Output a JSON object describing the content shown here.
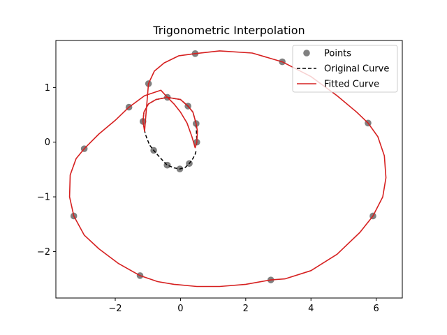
{
  "chart_data": {
    "type": "line",
    "title": "Trigonometric Interpolation",
    "xlabel": "",
    "ylabel": "",
    "xlim": [
      -3.82,
      6.8
    ],
    "ylim": [
      -2.85,
      1.86
    ],
    "xticks": [
      -2,
      0,
      2,
      4,
      6
    ],
    "yticks": [
      1,
      0,
      -1,
      -2
    ],
    "xtick_labels": [
      "−2",
      "0",
      "2",
      "4",
      "6"
    ],
    "ytick_labels": [
      "1",
      "0",
      "−1",
      "−2"
    ],
    "grid": false,
    "legend_position": "top-right",
    "points_series": {
      "name": "Points",
      "color": "#808080",
      "x": [
        0.5,
        0.48,
        0.23,
        -0.4,
        -0.98,
        -1.15,
        -1.58,
        -2.95,
        -3.27,
        -1.24,
        2.77,
        5.9,
        5.75,
        3.12,
        0.45,
        -0.4,
        -0.82,
        -0.41,
        -0.02,
        0.27
      ],
      "y": [
        0.0,
        0.34,
        0.66,
        0.82,
        1.07,
        0.38,
        0.64,
        -0.12,
        -1.35,
        -2.44,
        -2.52,
        -1.35,
        0.35,
        1.47,
        1.62,
        -0.42,
        -0.15,
        -0.42,
        -0.49,
        -0.39
      ]
    },
    "original_curve": {
      "name": "Original Curve",
      "color": "#000000",
      "style": "dashed",
      "x": [
        0.48,
        0.5,
        0.48,
        0.38,
        0.23,
        0.0,
        -0.4,
        -0.75,
        -0.98,
        -1.12,
        -1.15,
        -1.08,
        -0.95,
        -0.82,
        -0.6,
        -0.41,
        -0.2,
        -0.02,
        0.15,
        0.27,
        0.38,
        0.45,
        0.47,
        0.45
      ],
      "y": [
        -0.05,
        0.0,
        0.34,
        0.55,
        0.66,
        0.78,
        0.82,
        0.78,
        0.7,
        0.55,
        0.38,
        0.15,
        -0.05,
        -0.15,
        -0.3,
        -0.42,
        -0.47,
        -0.49,
        -0.46,
        -0.39,
        -0.3,
        -0.22,
        -0.18,
        -0.18
      ]
    },
    "fitted_curve": {
      "name": "Fitted Curve",
      "color": "#d62020",
      "x": [
        0.5,
        0.52,
        0.48,
        0.38,
        0.23,
        0.0,
        -0.4,
        -0.75,
        -0.98,
        -1.12,
        -1.15,
        -1.1,
        -0.98,
        -0.8,
        -0.5,
        -0.05,
        0.45,
        1.2,
        2.2,
        3.12,
        4.0,
        4.8,
        5.4,
        5.75,
        6.05,
        6.25,
        6.3,
        6.2,
        5.9,
        5.5,
        4.8,
        4.0,
        3.2,
        2.77,
        2.0,
        1.2,
        0.5,
        -0.2,
        -0.7,
        -1.24,
        -1.9,
        -2.5,
        -2.95,
        -3.27,
        -3.4,
        -3.38,
        -3.2,
        -2.95,
        -2.5,
        -2.0,
        -1.58,
        -1.1,
        -0.6,
        -0.4,
        -0.2,
        0.0,
        0.2,
        0.35,
        0.45,
        0.5
      ],
      "y": [
        0.0,
        0.2,
        0.34,
        0.55,
        0.66,
        0.78,
        0.82,
        0.78,
        0.7,
        0.55,
        0.38,
        0.2,
        1.07,
        1.3,
        1.45,
        1.58,
        1.62,
        1.67,
        1.63,
        1.47,
        1.2,
        0.85,
        0.55,
        0.35,
        0.1,
        -0.25,
        -0.65,
        -1.0,
        -1.35,
        -1.65,
        -2.05,
        -2.35,
        -2.5,
        -2.52,
        -2.6,
        -2.64,
        -2.64,
        -2.6,
        -2.55,
        -2.44,
        -2.22,
        -1.95,
        -1.7,
        -1.35,
        -1.0,
        -0.6,
        -0.3,
        -0.12,
        0.15,
        0.4,
        0.64,
        0.85,
        0.95,
        0.82,
        0.7,
        0.55,
        0.35,
        0.1,
        -0.1,
        0.0
      ]
    },
    "legend_entries": [
      "Points",
      "Original Curve",
      "Fitted Curve"
    ]
  }
}
